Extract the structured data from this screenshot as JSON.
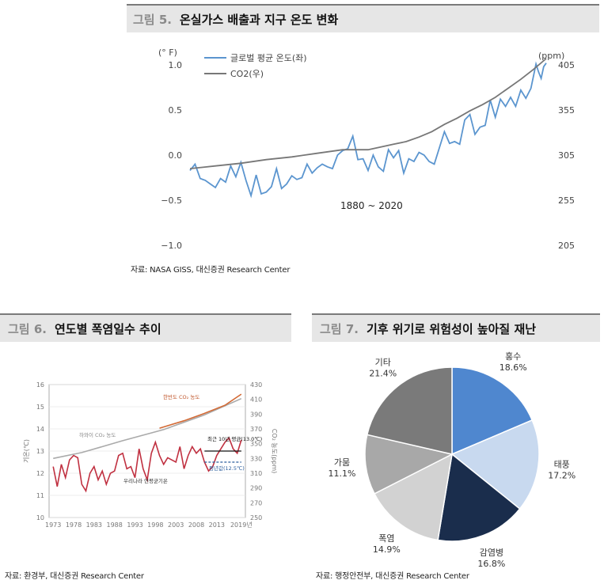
{
  "fig5": {
    "num": "그림 5.",
    "title": "온실가스 배출과 지구 온도 변화",
    "source": "자료: NASA GISS, 대신증권 Research Center",
    "chart_data": {
      "type": "line",
      "left_unit": "(° F)",
      "right_unit": "(ppm)",
      "annotation": "1880 ~ 2020",
      "left_ylim": [
        -1.0,
        1.0
      ],
      "left_ticks": [
        "1.0",
        "0.5",
        "0.0",
        "−0.5",
        "−1.0"
      ],
      "right_ylim": [
        205,
        405
      ],
      "right_ticks": [
        "405",
        "355",
        "305",
        "255",
        "205"
      ],
      "x_range": [
        1880,
        2020
      ],
      "series": [
        {
          "name": "글로벌 평균 온도(좌)",
          "axis": "left",
          "color": "#5b95cf",
          "x": [
            1880,
            1882,
            1884,
            1886,
            1888,
            1890,
            1892,
            1894,
            1896,
            1898,
            1900,
            1902,
            1904,
            1906,
            1908,
            1910,
            1912,
            1914,
            1916,
            1918,
            1920,
            1922,
            1924,
            1926,
            1928,
            1930,
            1932,
            1934,
            1936,
            1938,
            1940,
            1942,
            1944,
            1946,
            1948,
            1950,
            1952,
            1954,
            1956,
            1958,
            1960,
            1962,
            1964,
            1966,
            1968,
            1970,
            1972,
            1974,
            1976,
            1978,
            1980,
            1982,
            1984,
            1986,
            1988,
            1990,
            1992,
            1994,
            1996,
            1998,
            2000,
            2002,
            2004,
            2006,
            2008,
            2010,
            2012,
            2014,
            2016,
            2017,
            2018,
            2019,
            2020
          ],
          "y": [
            -0.17,
            -0.1,
            -0.26,
            -0.28,
            -0.32,
            -0.36,
            -0.26,
            -0.3,
            -0.12,
            -0.24,
            -0.08,
            -0.28,
            -0.45,
            -0.22,
            -0.43,
            -0.41,
            -0.35,
            -0.15,
            -0.37,
            -0.32,
            -0.23,
            -0.27,
            -0.25,
            -0.1,
            -0.2,
            -0.14,
            -0.1,
            -0.13,
            -0.15,
            0.0,
            0.05,
            0.07,
            0.21,
            -0.05,
            -0.04,
            -0.17,
            0.0,
            -0.13,
            -0.18,
            0.06,
            -0.03,
            0.05,
            -0.2,
            -0.04,
            -0.07,
            0.03,
            0.0,
            -0.07,
            -0.1,
            0.08,
            0.26,
            0.13,
            0.15,
            0.12,
            0.39,
            0.45,
            0.23,
            0.31,
            0.33,
            0.61,
            0.42,
            0.62,
            0.54,
            0.64,
            0.54,
            0.72,
            0.63,
            0.74,
            1.01,
            0.92,
            0.85,
            0.98,
            1.02
          ]
        },
        {
          "name": "CO2(우)",
          "axis": "right",
          "color": "#777777",
          "x": [
            1880,
            1890,
            1900,
            1910,
            1920,
            1930,
            1940,
            1950,
            1955,
            1960,
            1965,
            1970,
            1975,
            1980,
            1985,
            1990,
            1995,
            2000,
            2005,
            2010,
            2015,
            2020
          ],
          "y": [
            290,
            293,
            296,
            300,
            303,
            307,
            311,
            311,
            314,
            317,
            320,
            325,
            331,
            339,
            346,
            354,
            361,
            369,
            379,
            389,
            400,
            412
          ]
        }
      ]
    }
  },
  "fig6": {
    "num": "그림 6.",
    "title": "연도별 폭염일수 추이",
    "source": "자료: 환경부, 대신증권 Research Center",
    "chart_data": {
      "type": "line",
      "left_ylabel": "기온(℃)",
      "right_ylabel": "CO₂ 농도(ppm)",
      "left_ylim": [
        10,
        16
      ],
      "left_ticks": [
        "16",
        "15",
        "14",
        "13",
        "12",
        "11",
        "10"
      ],
      "right_ylim": [
        250,
        430
      ],
      "right_ticks": [
        "430",
        "410",
        "390",
        "370",
        "350",
        "330",
        "310",
        "290",
        "270",
        "250"
      ],
      "x_ticks": [
        "1973",
        "1978",
        "1983",
        "1988",
        "1993",
        "1998",
        "2003",
        "2008",
        "2013",
        "2019년"
      ],
      "annotations": [
        "한반도 CO₂ 농도",
        "하와이 CO₂ 농도",
        "우리나라 연평균기온",
        "최근 10년 평균(13.0℃)",
        "평년값(12.5℃)"
      ],
      "series": [
        {
          "name": "우리나라 연평균기온",
          "axis": "left",
          "color": "#c03040",
          "x": [
            1973,
            1974,
            1975,
            1976,
            1977,
            1978,
            1979,
            1980,
            1981,
            1982,
            1983,
            1984,
            1985,
            1986,
            1987,
            1988,
            1989,
            1990,
            1991,
            1992,
            1993,
            1994,
            1995,
            1996,
            1997,
            1998,
            1999,
            2000,
            2001,
            2002,
            2003,
            2004,
            2005,
            2006,
            2007,
            2008,
            2009,
            2010,
            2011,
            2012,
            2013,
            2014,
            2015,
            2016,
            2017,
            2018,
            2019
          ],
          "y": [
            12.3,
            11.4,
            12.4,
            11.8,
            12.6,
            12.8,
            12.7,
            11.5,
            11.2,
            12.0,
            12.3,
            11.7,
            12.1,
            11.5,
            12.0,
            12.1,
            12.8,
            12.9,
            12.2,
            12.3,
            11.8,
            13.1,
            12.2,
            11.7,
            12.9,
            13.4,
            12.8,
            12.4,
            12.7,
            12.6,
            12.5,
            13.2,
            12.2,
            12.8,
            13.2,
            12.9,
            13.1,
            12.5,
            12.1,
            12.3,
            12.8,
            13.1,
            13.4,
            13.6,
            13.1,
            12.9,
            13.5
          ]
        },
        {
          "name": "하와이 CO₂ 농도",
          "axis": "right",
          "color": "#aaaaaa",
          "x": [
            1973,
            1980,
            1990,
            2000,
            2010,
            2019
          ],
          "y": [
            330,
            338,
            354,
            369,
            389,
            411
          ]
        },
        {
          "name": "한반도 CO₂ 농도",
          "axis": "right",
          "color": "#d36a35",
          "x": [
            1999,
            2005,
            2010,
            2015,
            2019
          ],
          "y": [
            371,
            381,
            391,
            402,
            417
          ]
        }
      ],
      "reference_lines": [
        {
          "name": "최근 10년 평균(13.0℃)",
          "value": 13.0,
          "x": [
            2010,
            2019
          ],
          "color": "#111111"
        },
        {
          "name": "평년값(12.5℃)",
          "value": 12.5,
          "x": [
            2010,
            2019
          ],
          "color": "#2a5d9c"
        }
      ]
    }
  },
  "fig7": {
    "num": "그림 7.",
    "title": "기후 위기로 위험성이 높아질 재난",
    "source": "자료: 행정안전부, 대신증권 Research Center",
    "chart_data": {
      "type": "pie",
      "slices": [
        {
          "label": "홍수",
          "value": 18.6,
          "display": "18.6%",
          "color": "#4f87cf"
        },
        {
          "label": "태풍",
          "value": 17.2,
          "display": "17.2%",
          "color": "#c8d9ef"
        },
        {
          "label": "감염병",
          "value": 16.8,
          "display": "16.8%",
          "color": "#1a2d4c"
        },
        {
          "label": "폭염",
          "value": 14.9,
          "display": "14.9%",
          "color": "#d2d2d2"
        },
        {
          "label": "가뭄",
          "value": 11.1,
          "display": "11.1%",
          "color": "#a8a8a8"
        },
        {
          "label": "기타",
          "value": 21.4,
          "display": "21.4%",
          "color": "#7a7a7a"
        }
      ]
    }
  }
}
